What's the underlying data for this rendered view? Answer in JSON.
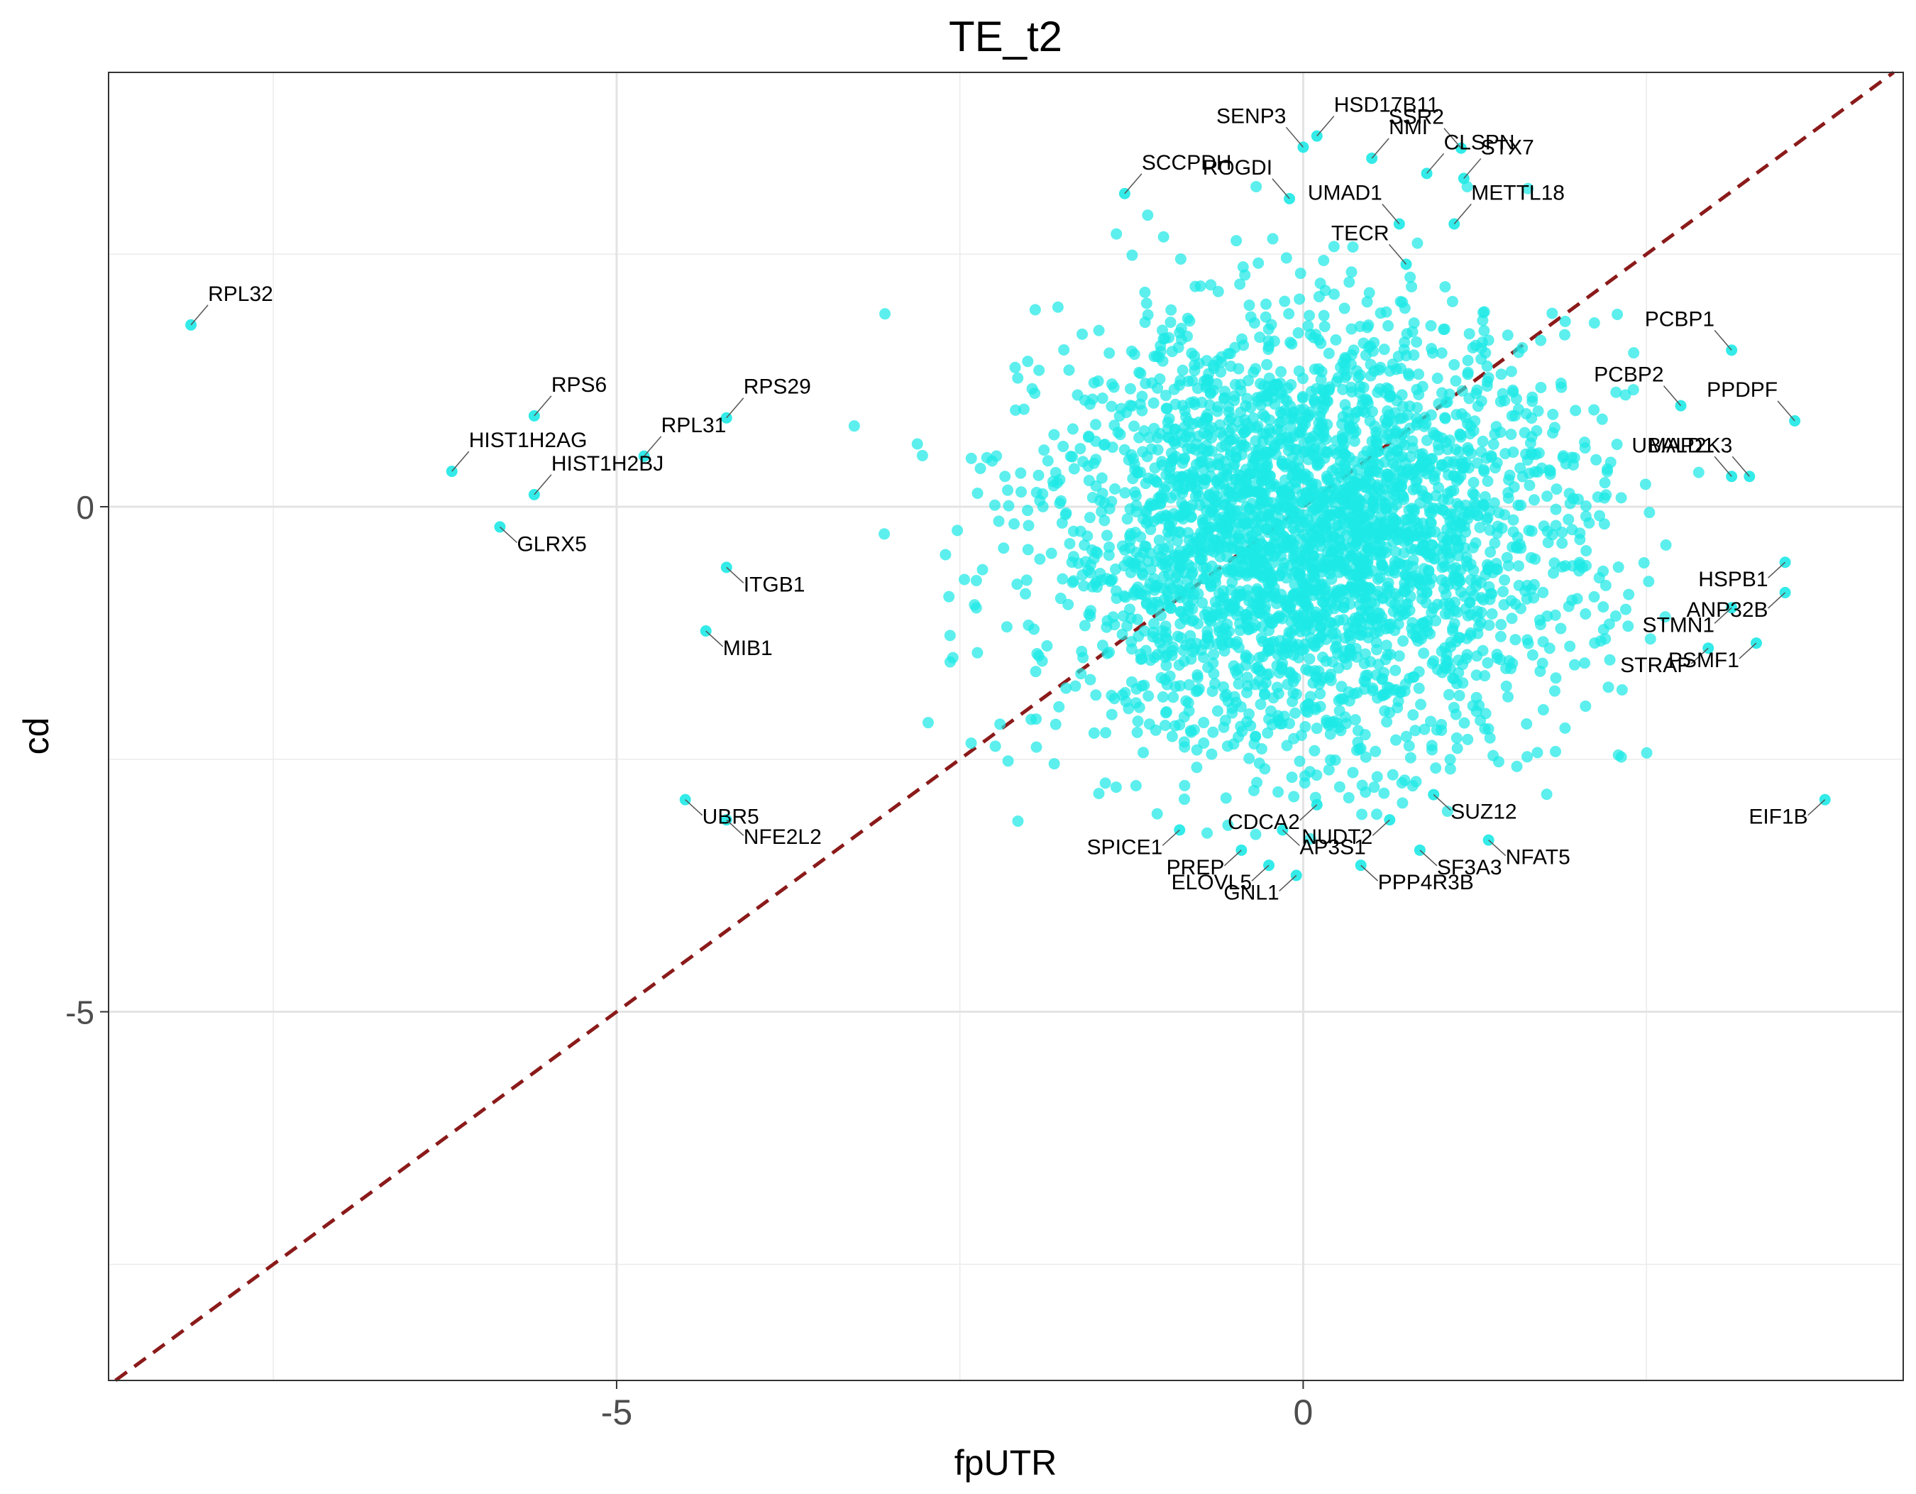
{
  "chart_data": {
    "type": "scatter",
    "title": "TE_t2",
    "xlabel": "fpUTR",
    "ylabel": "cd",
    "xlim": [
      -8.7,
      4.37
    ],
    "ylim": [
      -8.65,
      4.3
    ],
    "x_ticks": [
      -5,
      0
    ],
    "x_tick_labels": [
      "-5",
      "0"
    ],
    "y_ticks": [
      -5,
      0
    ],
    "y_tick_labels": [
      "-5",
      "0"
    ],
    "x_minor_grid": [
      -7.5,
      -2.5,
      2.5
    ],
    "y_minor_grid": [
      -7.5,
      -2.5,
      2.5
    ],
    "grid": true,
    "reference_line": {
      "slope": 1,
      "intercept": 0,
      "style": "dashed",
      "color": "#8b1a1a"
    },
    "point_color": "#1de9e6",
    "background_points": {
      "count": 3200,
      "center": [
        0.05,
        -0.3
      ],
      "sd": [
        0.95,
        1.05
      ],
      "random_seed": 7
    },
    "labeled_points": [
      {
        "label": "RPL32",
        "x": -8.1,
        "y": 1.8
      },
      {
        "label": "RPS6",
        "x": -5.6,
        "y": 0.9
      },
      {
        "label": "HIST1H2AG",
        "x": -6.2,
        "y": 0.35
      },
      {
        "label": "RPL31",
        "x": -4.8,
        "y": 0.5
      },
      {
        "label": "RPS29",
        "x": -4.2,
        "y": 0.88
      },
      {
        "label": "HIST1H2BJ",
        "x": -5.6,
        "y": 0.12
      },
      {
        "label": "GLRX5",
        "x": -5.85,
        "y": -0.2
      },
      {
        "label": "ITGB1",
        "x": -4.2,
        "y": -0.6
      },
      {
        "label": "MIB1",
        "x": -4.35,
        "y": -1.23
      },
      {
        "label": "UBR5",
        "x": -4.5,
        "y": -2.9
      },
      {
        "label": "NFE2L2",
        "x": -4.2,
        "y": -3.1
      },
      {
        "label": "SCCPDH",
        "x": -1.3,
        "y": 3.1
      },
      {
        "label": "HSD17B11",
        "x": 0.1,
        "y": 3.67
      },
      {
        "label": "SENP3",
        "x": 0.0,
        "y": 3.56
      },
      {
        "label": "NMI",
        "x": 0.5,
        "y": 3.45
      },
      {
        "label": "SSR2",
        "x": 1.15,
        "y": 3.55
      },
      {
        "label": "CLSPN",
        "x": 0.9,
        "y": 3.3
      },
      {
        "label": "ROGDI",
        "x": -0.1,
        "y": 3.05
      },
      {
        "label": "STX7",
        "x": 1.17,
        "y": 3.25
      },
      {
        "label": "UMAD1",
        "x": 0.7,
        "y": 2.8
      },
      {
        "label": "METTL18",
        "x": 1.1,
        "y": 2.8
      },
      {
        "label": "TECR",
        "x": 0.75,
        "y": 2.4
      },
      {
        "label": "PCBP1",
        "x": 3.12,
        "y": 1.55
      },
      {
        "label": "PCBP2",
        "x": 2.75,
        "y": 1.0
      },
      {
        "label": "PPDPF",
        "x": 3.58,
        "y": 0.85
      },
      {
        "label": "UBALD1",
        "x": 3.12,
        "y": 0.3
      },
      {
        "label": "MAP2K3",
        "x": 3.25,
        "y": 0.3
      },
      {
        "label": "HSPB1",
        "x": 3.51,
        "y": -0.55
      },
      {
        "label": "STMN1",
        "x": 3.12,
        "y": -1.0
      },
      {
        "label": "ANP32B",
        "x": 3.51,
        "y": -0.85
      },
      {
        "label": "STRAP",
        "x": 2.95,
        "y": -1.4
      },
      {
        "label": "PSMF1",
        "x": 3.3,
        "y": -1.35
      },
      {
        "label": "EIF1B",
        "x": 3.8,
        "y": -2.9
      },
      {
        "label": "NUDT2",
        "x": 0.63,
        "y": -3.1
      },
      {
        "label": "AP3S1",
        "x": -0.15,
        "y": -3.2
      },
      {
        "label": "CDCA2",
        "x": 0.1,
        "y": -2.95
      },
      {
        "label": "SUZ12",
        "x": 0.95,
        "y": -2.85
      },
      {
        "label": "SPICE1",
        "x": -0.9,
        "y": -3.2
      },
      {
        "label": "NFAT5",
        "x": 1.35,
        "y": -3.3
      },
      {
        "label": "PREP",
        "x": -0.45,
        "y": -3.4
      },
      {
        "label": "SF3A3",
        "x": 0.85,
        "y": -3.4
      },
      {
        "label": "ELOVL5",
        "x": -0.25,
        "y": -3.55
      },
      {
        "label": "PPP4R3B",
        "x": 0.42,
        "y": -3.55
      },
      {
        "label": "GNL1",
        "x": -0.05,
        "y": -3.65
      }
    ]
  }
}
